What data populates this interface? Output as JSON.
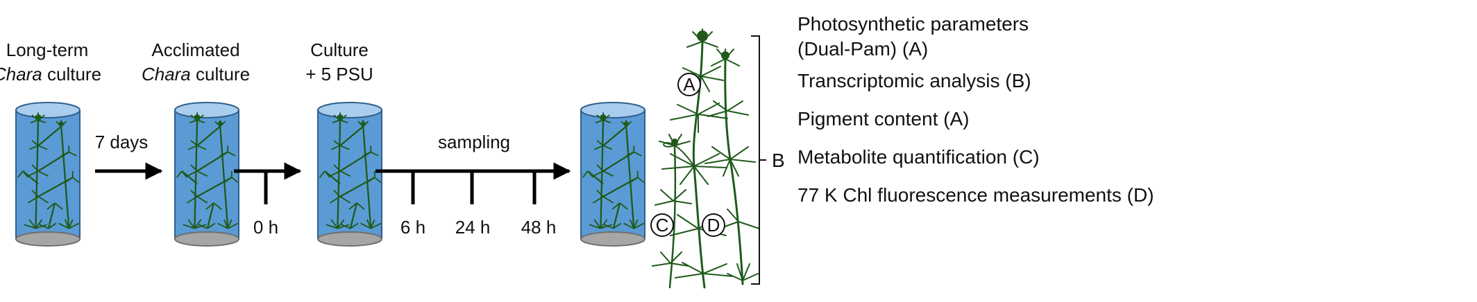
{
  "stages": [
    {
      "line1": "Long-term",
      "line2_italic": "Chara",
      "line2_rest": " culture"
    },
    {
      "line1": "Acclimated",
      "line2_italic": "Chara",
      "line2_rest": " culture"
    },
    {
      "line1": "Culture",
      "line2": "+ 5 PSU"
    }
  ],
  "arrow_labels": {
    "first": "7 days",
    "sampling": "sampling"
  },
  "time_points": [
    "0 h",
    "6 h",
    "24 h",
    "48 h"
  ],
  "plant_markers": [
    "A",
    "C",
    "D"
  ],
  "bracket_label": "B",
  "outputs": [
    {
      "line1": "Photosynthetic parameters",
      "line2": "(Dual-Pam) (A)"
    },
    {
      "line1": "Transcriptomic analysis (B)"
    },
    {
      "line1": "Pigment content (A)"
    },
    {
      "line1": "Metabolite quantification (C)"
    },
    {
      "line1": "77 K Chl fluorescence measurements (D)"
    }
  ],
  "colors": {
    "cylinder_body": "#5b9bd5",
    "cylinder_top": "#a9cdee",
    "cylinder_outline": "#2f5f8a",
    "cylinder_base": "#a6a6a6",
    "plant": "#1f5a1a",
    "arrow": "#000000"
  }
}
